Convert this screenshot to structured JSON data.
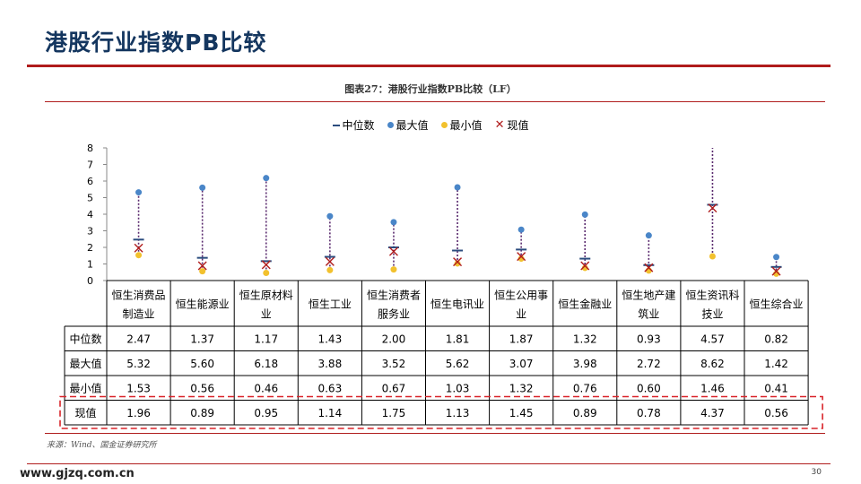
{
  "page": {
    "title": "港股行业指数PB比较",
    "figure_caption": "图表27：港股行业指数PB比较（LF）",
    "source": "来源：Wind、国金证券研究所",
    "website": "www.gjzq.com.cn",
    "page_number": "30"
  },
  "colors": {
    "title": "#14365f",
    "accent_red": "#b01c1c",
    "median": "#2b4c7e",
    "max": "#4a86c8",
    "min": "#f2c12e",
    "current": "#b01c1c",
    "range_line": "#5a2a6e",
    "highlight_border": "#d9242a"
  },
  "chart_data": {
    "type": "table",
    "title": "图表27：港股行业指数PB比较（LF）",
    "legend": [
      "中位数",
      "最大值",
      "最小值",
      "现值"
    ],
    "legend_position": "top",
    "ylim": [
      0,
      8
    ],
    "yticks": [
      0,
      1,
      2,
      3,
      4,
      5,
      6,
      7,
      8
    ],
    "categories": [
      "恒生消费品制造业",
      "恒生能源业",
      "恒生原材料业",
      "恒生工业",
      "恒生消费者服务业",
      "恒生电讯业",
      "恒生公用事业",
      "恒生金融业",
      "恒生地产建筑业",
      "恒生资讯科技业",
      "恒生综合业"
    ],
    "category_lines": [
      [
        "恒生消费品",
        "制造业"
      ],
      [
        "恒生能源业"
      ],
      [
        "恒生原材料",
        "业"
      ],
      [
        "恒生工业"
      ],
      [
        "恒生消费者",
        "服务业"
      ],
      [
        "恒生电讯业"
      ],
      [
        "恒生公用事",
        "业"
      ],
      [
        "恒生金融业"
      ],
      [
        "恒生地产建",
        "筑业"
      ],
      [
        "恒生资讯科",
        "技业"
      ],
      [
        "恒生综合业"
      ]
    ],
    "series": [
      {
        "name": "中位数",
        "marker": "dash",
        "values": [
          2.47,
          1.37,
          1.17,
          1.43,
          2.0,
          1.81,
          1.87,
          1.32,
          0.93,
          4.57,
          0.82
        ],
        "labels": [
          "2.47",
          "1.37",
          "1.17",
          "1.43",
          "2.00",
          "1.81",
          "1.87",
          "1.32",
          "0.93",
          "4.57",
          "0.82"
        ]
      },
      {
        "name": "最大值",
        "marker": "dot",
        "values": [
          5.32,
          5.6,
          6.18,
          3.88,
          3.52,
          5.62,
          3.07,
          3.98,
          2.72,
          8.62,
          1.42
        ],
        "labels": [
          "5.32",
          "5.60",
          "6.18",
          "3.88",
          "3.52",
          "5.62",
          "3.07",
          "3.98",
          "2.72",
          "8.62",
          "1.42"
        ]
      },
      {
        "name": "最小值",
        "marker": "dot",
        "values": [
          1.53,
          0.56,
          0.46,
          0.63,
          0.67,
          1.03,
          1.32,
          0.76,
          0.6,
          1.46,
          0.41
        ],
        "labels": [
          "1.53",
          "0.56",
          "0.46",
          "0.63",
          "0.67",
          "1.03",
          "1.32",
          "0.76",
          "0.60",
          "1.46",
          "0.41"
        ]
      },
      {
        "name": "现值",
        "marker": "x",
        "values": [
          1.96,
          0.89,
          0.95,
          1.14,
          1.75,
          1.13,
          1.45,
          0.89,
          0.78,
          4.37,
          0.56
        ],
        "labels": [
          "1.96",
          "0.89",
          "0.95",
          "1.14",
          "1.75",
          "1.13",
          "1.45",
          "0.89",
          "0.78",
          "4.37",
          "0.56"
        ]
      }
    ],
    "row_labels": [
      "中位数",
      "最大值",
      "最小值",
      "现值"
    ],
    "highlighted_row": "现值"
  }
}
